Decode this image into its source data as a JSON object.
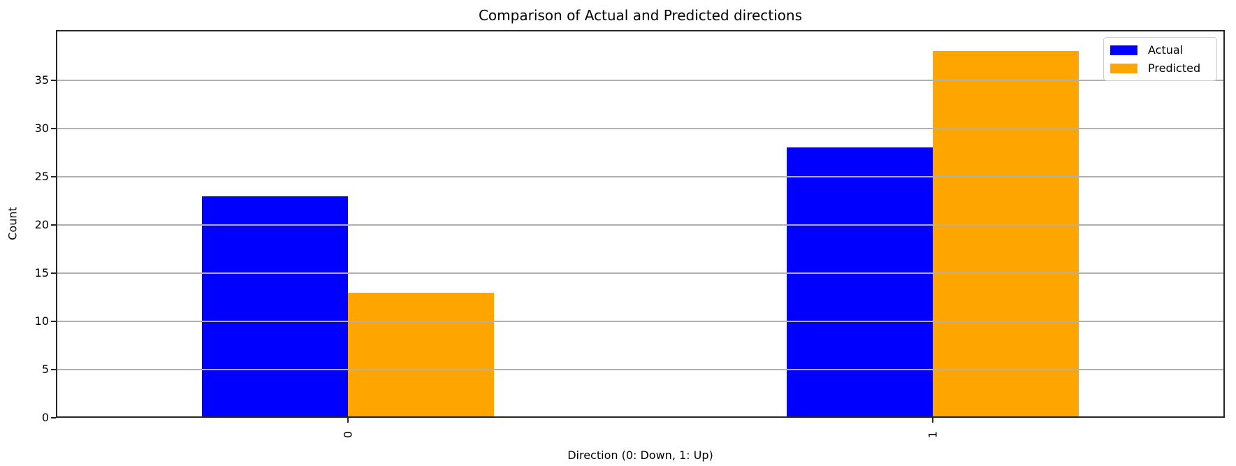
{
  "chart_data": {
    "type": "bar",
    "title": "Comparison of Actual and Predicted directions",
    "xlabel": "Direction (0: Down, 1: Up)",
    "ylabel": "Count",
    "categories": [
      "0",
      "1"
    ],
    "series": [
      {
        "name": "Actual",
        "color": "#0000ff",
        "values": [
          23,
          28
        ]
      },
      {
        "name": "Predicted",
        "color": "#ffa500",
        "values": [
          13,
          38
        ]
      }
    ],
    "ylim": [
      0,
      40.2
    ],
    "yticks": [
      0,
      5,
      10,
      15,
      20,
      25,
      30,
      35
    ],
    "grid": true,
    "grid_color": "#b0b0b0",
    "axis_color": "#262626",
    "background_color": "#ffffff",
    "x_tick_rotation": 90,
    "bar_group_fraction": 0.5,
    "legend_position": "upper right"
  }
}
